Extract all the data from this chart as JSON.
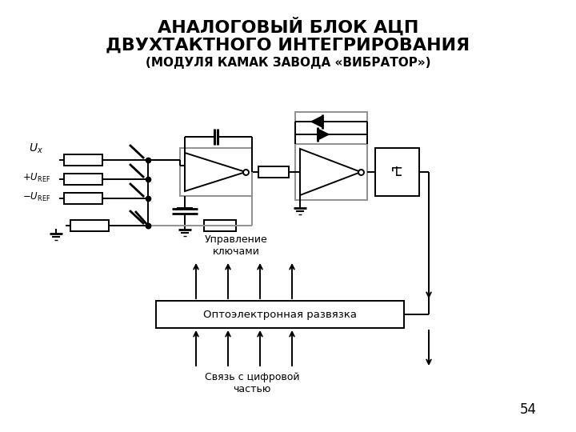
{
  "title_line1": "АНАЛОГОВЫЙ БЛОК АЦП",
  "title_line2": "ДВУХТАКТНОГО ИНТЕГРИРОВАНИЯ",
  "title_line3": "(МОДУЛЯ КАМАК ЗАВОДА «ВИБРАТОР»)",
  "page_number": "54",
  "bg_color": "#ffffff",
  "fg_color": "#000000",
  "gray_color": "#909090"
}
